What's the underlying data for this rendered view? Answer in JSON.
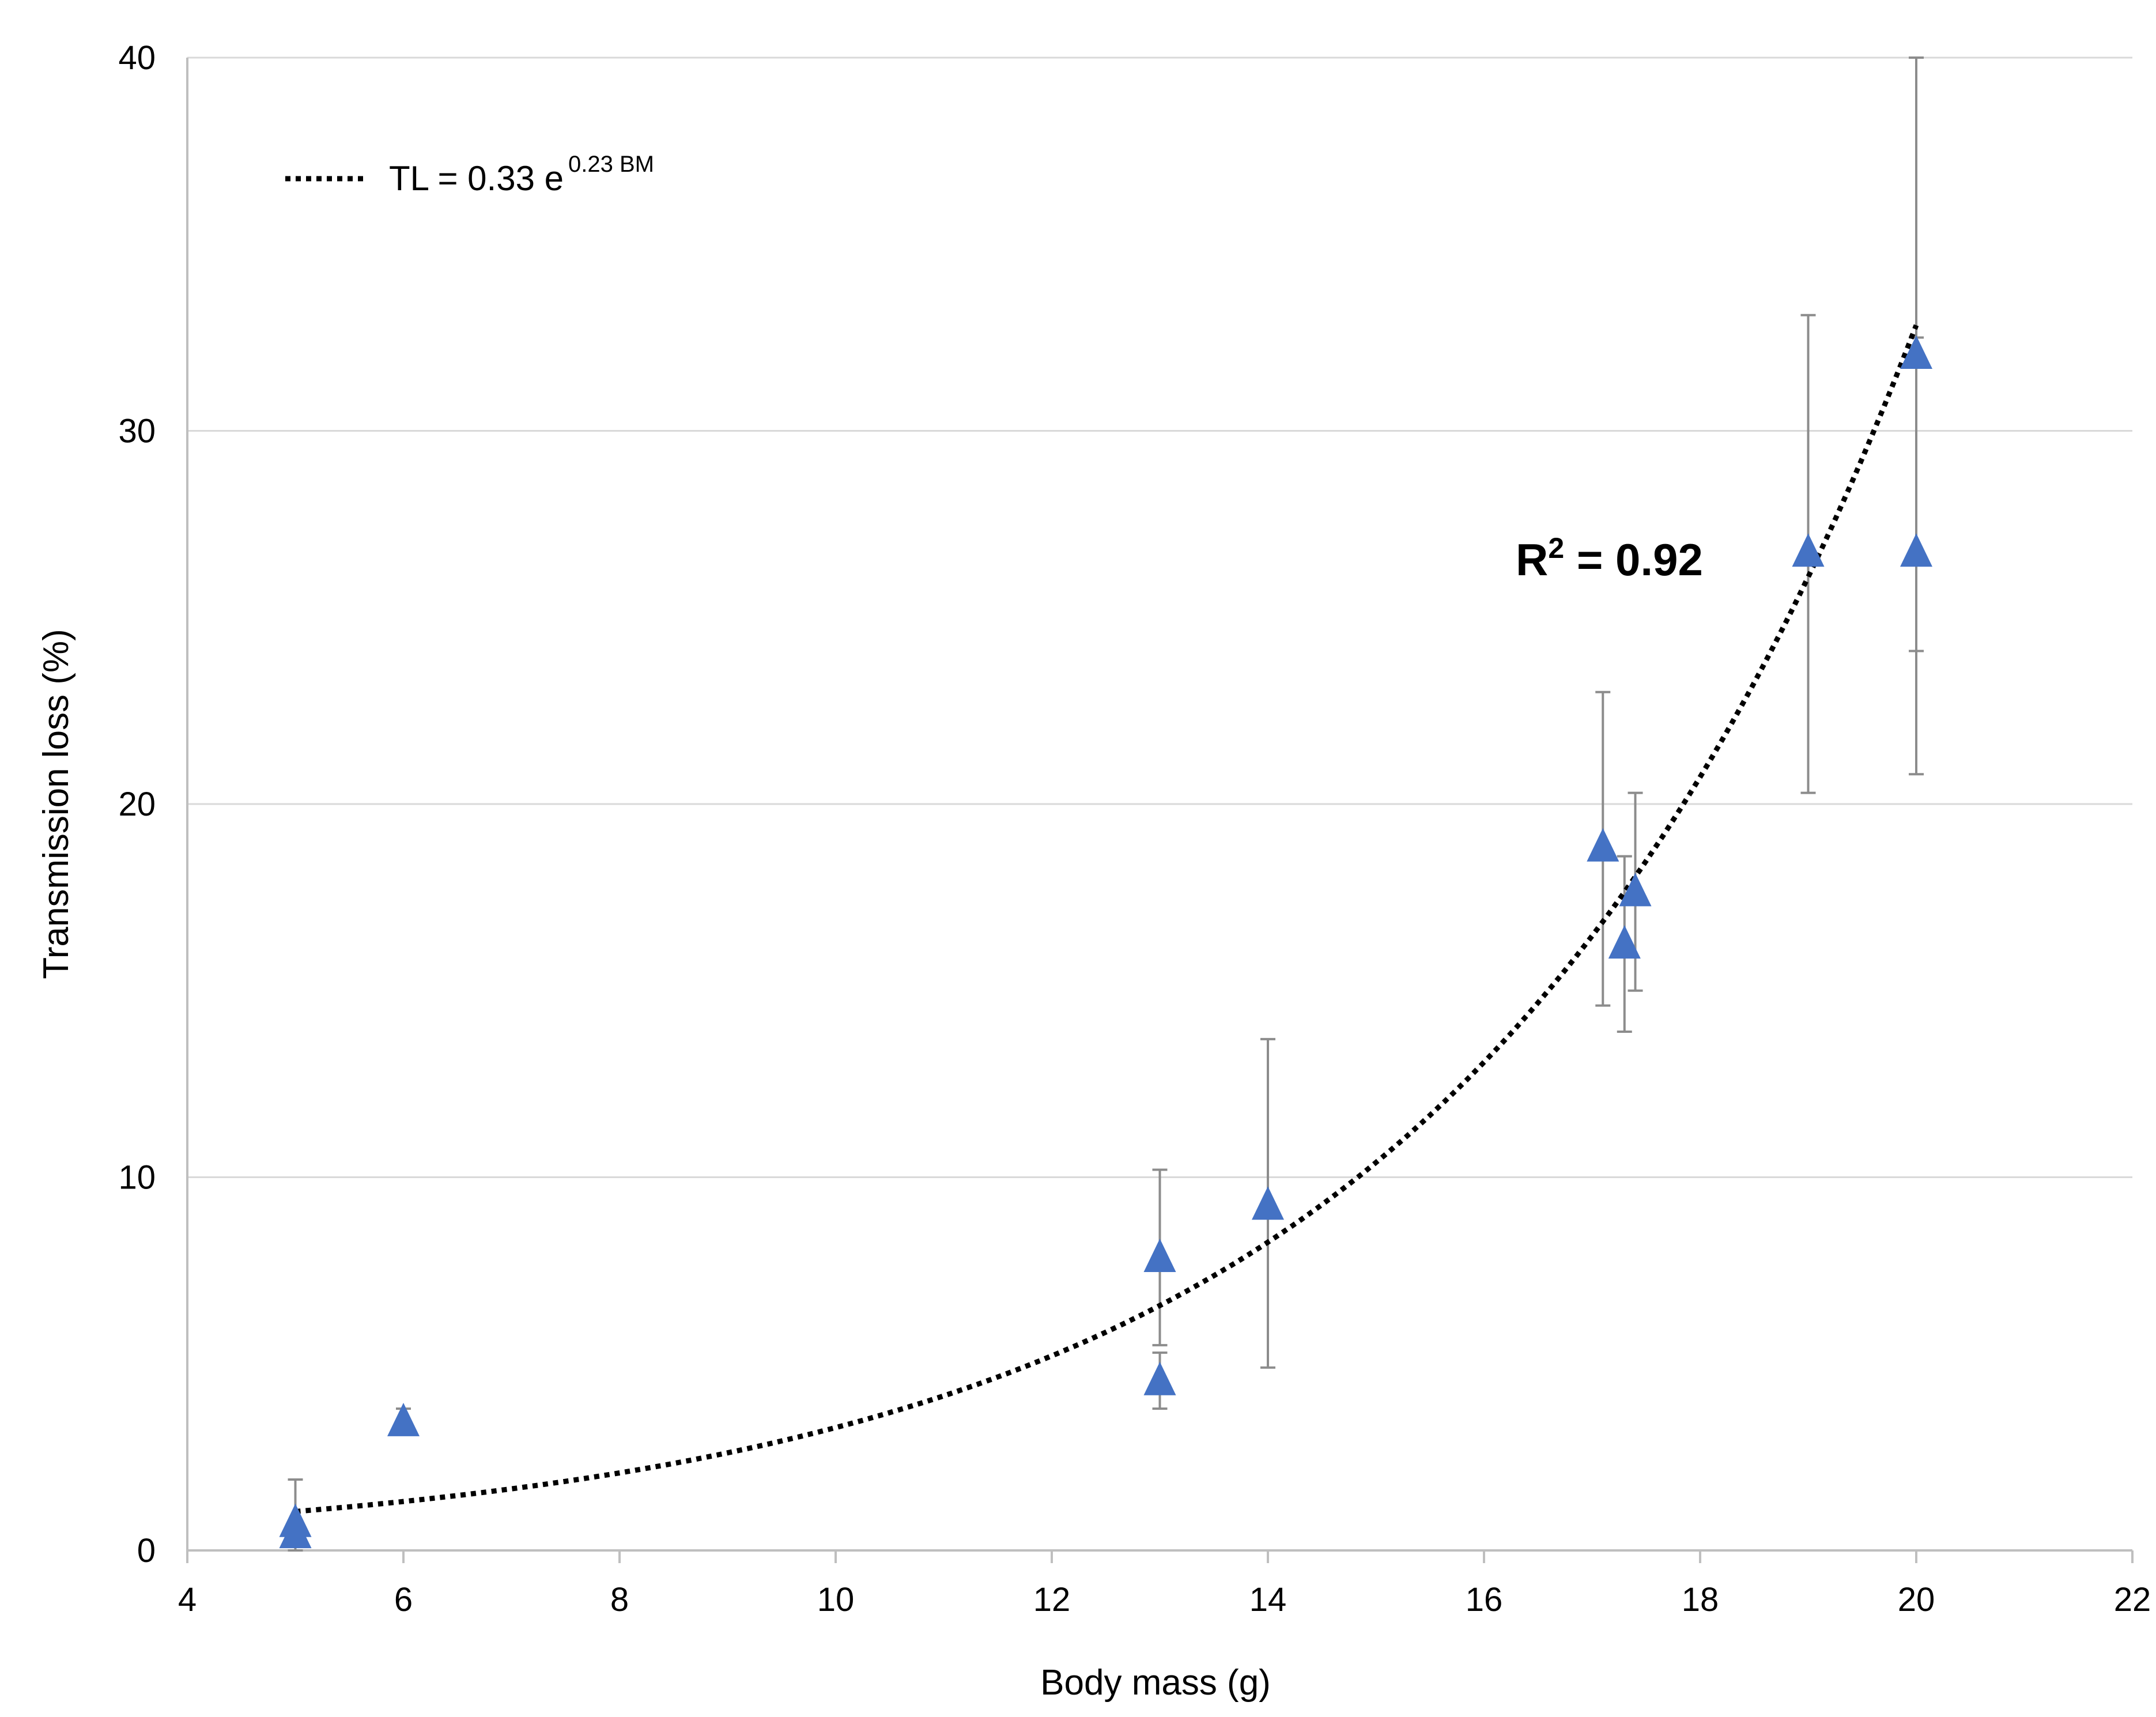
{
  "chart_data": {
    "type": "scatter",
    "title": "",
    "xlabel": "Body mass (g)",
    "ylabel": "Transmission loss (%)",
    "xlim": [
      4,
      22
    ],
    "ylim": [
      0,
      40
    ],
    "xticks": [
      4,
      6,
      8,
      10,
      12,
      14,
      16,
      18,
      20,
      22
    ],
    "yticks": [
      0,
      10,
      20,
      30,
      40
    ],
    "grid": "horizontal",
    "series": [
      {
        "name": "Transmission loss",
        "marker": "triangle",
        "color": "#4472c4",
        "points": [
          {
            "x": 5.0,
            "y": 0.7,
            "err_low": 0.0,
            "err_high": 1.9
          },
          {
            "x": 5.0,
            "y": 0.4,
            "err_low": 0.0,
            "err_high": 0.8
          },
          {
            "x": 6.0,
            "y": 3.4,
            "err_low": 3.4,
            "err_high": 3.8
          },
          {
            "x": 13.0,
            "y": 7.8,
            "err_low": 5.5,
            "err_high": 10.2
          },
          {
            "x": 13.0,
            "y": 4.5,
            "err_low": 3.8,
            "err_high": 5.3
          },
          {
            "x": 14.0,
            "y": 9.2,
            "err_low": 4.9,
            "err_high": 13.7
          },
          {
            "x": 17.1,
            "y": 18.8,
            "err_low": 14.6,
            "err_high": 23.0
          },
          {
            "x": 17.3,
            "y": 16.2,
            "err_low": 13.9,
            "err_high": 18.6
          },
          {
            "x": 17.4,
            "y": 17.6,
            "err_low": 15.0,
            "err_high": 20.3
          },
          {
            "x": 19.0,
            "y": 26.7,
            "err_low": 20.3,
            "err_high": 33.1
          },
          {
            "x": 20.0,
            "y": 32.0,
            "err_low": 24.1,
            "err_high": 40.0
          },
          {
            "x": 20.0,
            "y": 26.7,
            "err_low": 20.8,
            "err_high": 32.5
          }
        ]
      }
    ],
    "trendline": {
      "type": "exponential",
      "a": 0.33,
      "b": 0.23,
      "x_range": [
        5,
        20
      ],
      "style": "dotted",
      "color": "#000000",
      "equation_prefix": "TL = 0.33 e",
      "equation_exponent": "0.23 BM",
      "r2_prefix": "R",
      "r2_exponent": "2",
      "r2_value_text": " = 0.92"
    },
    "legend_position": "top-left"
  }
}
